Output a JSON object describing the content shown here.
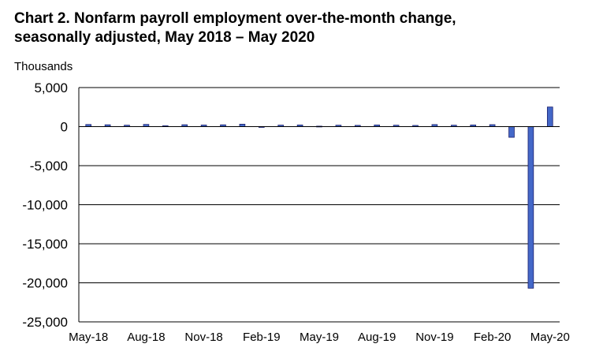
{
  "chart_data": {
    "type": "bar",
    "title_line1": "Chart 2. Nonfarm payroll employment over-the-month change,",
    "title_line2": "seasonally adjusted, May 2018 – May 2020",
    "ylabel": "Thousands",
    "xlabel": "",
    "ylim": [
      -25000,
      5000
    ],
    "yticks": [
      5000,
      0,
      -5000,
      -10000,
      -15000,
      -20000,
      -25000
    ],
    "ytick_labels": [
      "5,000",
      "0",
      "-5,000",
      "-10,000",
      "-15,000",
      "-20,000",
      "-25,000"
    ],
    "categories": [
      "May-18",
      "Jun-18",
      "Jul-18",
      "Aug-18",
      "Sep-18",
      "Oct-18",
      "Nov-18",
      "Dec-18",
      "Jan-19",
      "Feb-19",
      "Mar-19",
      "Apr-19",
      "May-19",
      "Jun-19",
      "Jul-19",
      "Aug-19",
      "Sep-19",
      "Oct-19",
      "Nov-19",
      "Dec-19",
      "Jan-20",
      "Feb-20",
      "Mar-20",
      "Apr-20",
      "May-20"
    ],
    "xtick_labels": [
      {
        "index": 0,
        "label": "May-18"
      },
      {
        "index": 3,
        "label": "Aug-18"
      },
      {
        "index": 6,
        "label": "Nov-18"
      },
      {
        "index": 9,
        "label": "Feb-19"
      },
      {
        "index": 12,
        "label": "May-19"
      },
      {
        "index": 15,
        "label": "Aug-19"
      },
      {
        "index": 18,
        "label": "Nov-19"
      },
      {
        "index": 21,
        "label": "Feb-20"
      },
      {
        "index": 24,
        "label": "May-20"
      }
    ],
    "values": [
      270,
      235,
      180,
      280,
      110,
      240,
      200,
      230,
      310,
      1,
      190,
      210,
      60,
      180,
      160,
      210,
      180,
      150,
      260,
      180,
      210,
      250,
      -1370,
      -20690,
      2510
    ],
    "grid": true,
    "legend": "none",
    "bar_color": "#4468c8",
    "bar_edge_color": "#1a1f6e"
  }
}
